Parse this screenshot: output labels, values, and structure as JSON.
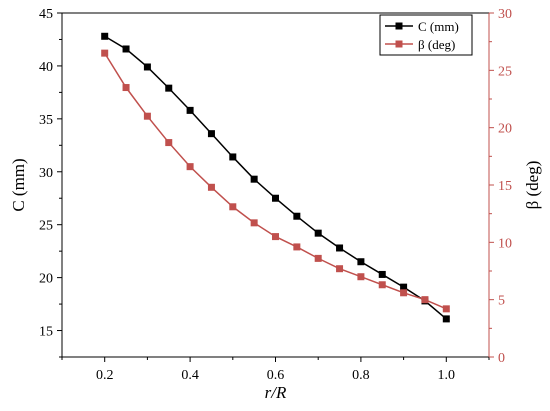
{
  "chart_data": {
    "type": "line",
    "xlabel": "r/R",
    "ylabel_left": "C (mm)",
    "ylabel_right": "β (deg)",
    "xlim": [
      0.1,
      1.1
    ],
    "xticks": [
      "0.2",
      "0.4",
      "0.6",
      "0.8",
      "1.0"
    ],
    "ylim_left": [
      12.5,
      45
    ],
    "yticks_left": [
      "15",
      "20",
      "25",
      "30",
      "35",
      "40",
      "45"
    ],
    "ylim_right": [
      0,
      30
    ],
    "yticks_right": [
      "0",
      "5",
      "10",
      "15",
      "20",
      "25",
      "30"
    ],
    "legend_position": "top-right",
    "x": [
      0.2,
      0.25,
      0.3,
      0.35,
      0.4,
      0.45,
      0.5,
      0.55,
      0.6,
      0.65,
      0.7,
      0.75,
      0.8,
      0.85,
      0.9,
      0.95,
      1.0
    ],
    "series": [
      {
        "name": "C (mm)",
        "axis": "left",
        "color": "#000000",
        "values": [
          42.8,
          41.6,
          39.9,
          37.9,
          35.8,
          33.6,
          31.4,
          29.3,
          27.5,
          25.8,
          24.2,
          22.8,
          21.5,
          20.3,
          19.1,
          17.8,
          16.1
        ]
      },
      {
        "name": "β (deg)",
        "axis": "right",
        "color": "#c0504d",
        "values": [
          26.5,
          23.5,
          21.0,
          18.7,
          16.6,
          14.8,
          13.1,
          11.7,
          10.5,
          9.6,
          8.6,
          7.7,
          7.0,
          6.3,
          5.6,
          5.0,
          4.2
        ]
      }
    ]
  },
  "colors": {
    "left_axis": "#000000",
    "right_axis": "#c0504d"
  }
}
